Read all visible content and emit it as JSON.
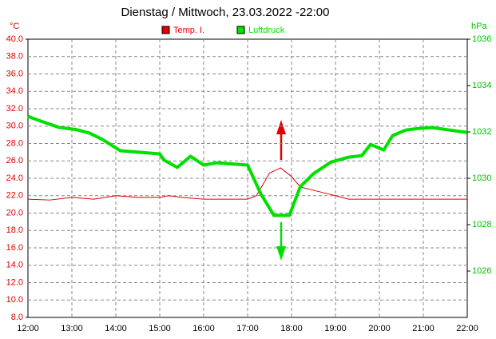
{
  "chart_data": {
    "type": "line",
    "title": "Dienstag / Mittwoch, 23.03.2022  -22:00",
    "y_label": "°C",
    "y2_label": "hPa",
    "xlim": [
      12,
      22
    ],
    "xticks": [
      {
        "value": 12,
        "label": "12:00"
      },
      {
        "value": 13,
        "label": "13:00"
      },
      {
        "value": 14,
        "label": "14:00"
      },
      {
        "value": 15,
        "label": "15:00"
      },
      {
        "value": 16,
        "label": "16:00"
      },
      {
        "value": 17,
        "label": "17:00"
      },
      {
        "value": 18,
        "label": "18:00"
      },
      {
        "value": 19,
        "label": "19:00"
      },
      {
        "value": 20,
        "label": "20:00"
      },
      {
        "value": 21,
        "label": "21:00"
      },
      {
        "value": 22,
        "label": "22:00"
      }
    ],
    "ylim": [
      8,
      40
    ],
    "yticks": [
      {
        "value": 8,
        "label": "8.0"
      },
      {
        "value": 10,
        "label": "10.0"
      },
      {
        "value": 12,
        "label": "12.0"
      },
      {
        "value": 14,
        "label": "14.0"
      },
      {
        "value": 16,
        "label": "16.0"
      },
      {
        "value": 18,
        "label": "18.0"
      },
      {
        "value": 20,
        "label": "20.0"
      },
      {
        "value": 22,
        "label": "22.0"
      },
      {
        "value": 24,
        "label": "24.0"
      },
      {
        "value": 26,
        "label": "26.0"
      },
      {
        "value": 28,
        "label": "28.0"
      },
      {
        "value": 30,
        "label": "30.0"
      },
      {
        "value": 32,
        "label": "32.0"
      },
      {
        "value": 34,
        "label": "34.0"
      },
      {
        "value": 36,
        "label": "36.0"
      },
      {
        "value": 38,
        "label": "38.0"
      },
      {
        "value": 40,
        "label": "40.0"
      }
    ],
    "y2lim": [
      1024,
      1036
    ],
    "y2ticks": [
      1026,
      1028,
      1030,
      1032,
      1034,
      1036
    ],
    "grid": true,
    "series": [
      {
        "name": "Temp. I.",
        "color": "#e00000",
        "width": 1,
        "x": [
          12,
          12.5,
          13,
          13.5,
          14,
          14.5,
          15,
          15.2,
          15.5,
          16,
          16.5,
          17,
          17.2,
          17.5,
          17.75,
          18,
          18.2,
          18.6,
          19,
          19.3,
          20,
          21,
          22
        ],
        "values": [
          21.6,
          21.5,
          21.8,
          21.6,
          22.0,
          21.8,
          21.8,
          22.0,
          21.8,
          21.6,
          21.6,
          21.6,
          22.0,
          24.6,
          25.2,
          24.2,
          23.0,
          22.5,
          22.0,
          21.6,
          21.6,
          21.6,
          21.6
        ]
      },
      {
        "name": "Luftdruck",
        "color": "#00e000",
        "width": 4,
        "axis": "y2",
        "x": [
          12,
          12.3,
          12.7,
          13.1,
          13.4,
          13.7,
          14.1,
          15.0,
          15.1,
          15.4,
          15.7,
          16.0,
          16.3,
          17.0,
          17.3,
          17.6,
          17.95,
          18.2,
          18.5,
          18.9,
          19.3,
          19.6,
          19.8,
          20.1,
          20.3,
          20.6,
          20.9,
          21.2,
          21.6,
          22
        ],
        "values": [
          1032.67,
          1032.46,
          1032.2,
          1032.1,
          1031.95,
          1031.67,
          1031.19,
          1031.05,
          1030.78,
          1030.47,
          1030.95,
          1030.57,
          1030.67,
          1030.57,
          1029.33,
          1028.4,
          1028.4,
          1029.64,
          1030.2,
          1030.7,
          1030.91,
          1030.98,
          1031.46,
          1031.22,
          1031.84,
          1032.08,
          1032.15,
          1032.19,
          1032.08,
          1031.98
        ]
      }
    ]
  }
}
